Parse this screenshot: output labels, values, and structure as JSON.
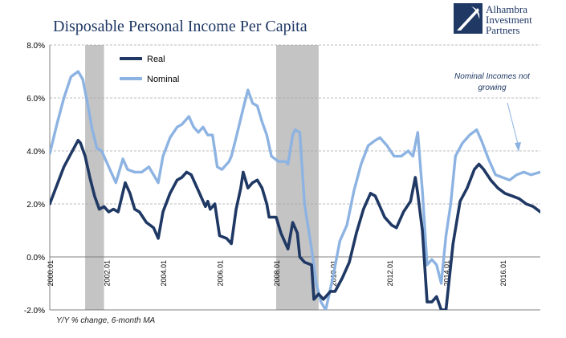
{
  "chart_data": {
    "type": "line",
    "title": "Disposable Personal Income Per Capita",
    "note": "Y/Y % change, 6-month MA",
    "annotation": "Nominal Incomes not growing",
    "ylim": [
      -2.0,
      8.0
    ],
    "y_ticks": [
      "8.0%",
      "6.0%",
      "4.0%",
      "2.0%",
      "0.0%",
      "-2.0%"
    ],
    "y_tick_values": [
      8,
      6,
      4,
      2,
      0,
      -2
    ],
    "xlim": [
      "2000-01",
      "2017-05"
    ],
    "x_ticks": [
      "2000.01",
      "2002.01",
      "2004.01",
      "2006.01",
      "2008.01",
      "2010.01",
      "2012.01",
      "2014.01",
      "2016.01"
    ],
    "grid": "horizontal dashed",
    "legend": "top-left",
    "recessions": [
      [
        "2001-04",
        "2001-12"
      ],
      [
        "2008-01",
        "2009-07"
      ]
    ],
    "series": [
      {
        "name": "Real",
        "color": "#1f3864",
        "points": [
          [
            "2000-01",
            2.0
          ],
          [
            "2000-04",
            2.7
          ],
          [
            "2000-07",
            3.4
          ],
          [
            "2000-10",
            3.9
          ],
          [
            "2001-01",
            4.4
          ],
          [
            "2001-02",
            4.3
          ],
          [
            "2001-04",
            3.8
          ],
          [
            "2001-06",
            3.0
          ],
          [
            "2001-08",
            2.3
          ],
          [
            "2001-10",
            1.8
          ],
          [
            "2001-12",
            1.9
          ],
          [
            "2002-02",
            1.7
          ],
          [
            "2002-04",
            1.8
          ],
          [
            "2002-06",
            1.7
          ],
          [
            "2002-09",
            2.8
          ],
          [
            "2002-11",
            2.4
          ],
          [
            "2003-01",
            1.8
          ],
          [
            "2003-03",
            1.7
          ],
          [
            "2003-06",
            1.3
          ],
          [
            "2003-09",
            1.1
          ],
          [
            "2003-11",
            0.7
          ],
          [
            "2004-01",
            1.7
          ],
          [
            "2004-04",
            2.4
          ],
          [
            "2004-07",
            2.9
          ],
          [
            "2004-09",
            3.0
          ],
          [
            "2004-11",
            3.2
          ],
          [
            "2005-01",
            3.1
          ],
          [
            "2005-04",
            2.5
          ],
          [
            "2005-07",
            1.9
          ],
          [
            "2005-08",
            2.1
          ],
          [
            "2005-09",
            1.8
          ],
          [
            "2005-11",
            2.0
          ],
          [
            "2006-01",
            0.8
          ],
          [
            "2006-04",
            0.7
          ],
          [
            "2006-06",
            0.5
          ],
          [
            "2006-08",
            1.8
          ],
          [
            "2006-10",
            2.6
          ],
          [
            "2006-11",
            3.2
          ],
          [
            "2007-01",
            2.6
          ],
          [
            "2007-03",
            2.8
          ],
          [
            "2007-05",
            2.9
          ],
          [
            "2007-07",
            2.6
          ],
          [
            "2007-09",
            2.0
          ],
          [
            "2007-10",
            1.5
          ],
          [
            "2008-01",
            1.5
          ],
          [
            "2008-03",
            0.9
          ],
          [
            "2008-06",
            0.3
          ],
          [
            "2008-08",
            1.3
          ],
          [
            "2008-10",
            0.9
          ],
          [
            "2008-11",
            0.0
          ],
          [
            "2009-01",
            -0.2
          ],
          [
            "2009-04",
            -0.3
          ],
          [
            "2009-05",
            -1.6
          ],
          [
            "2009-07",
            -1.4
          ],
          [
            "2009-09",
            -1.6
          ],
          [
            "2009-12",
            -1.3
          ],
          [
            "2010-02",
            -1.3
          ],
          [
            "2010-05",
            -0.8
          ],
          [
            "2010-08",
            -0.2
          ],
          [
            "2010-11",
            0.9
          ],
          [
            "2011-02",
            1.8
          ],
          [
            "2011-05",
            2.4
          ],
          [
            "2011-07",
            2.3
          ],
          [
            "2011-09",
            1.9
          ],
          [
            "2011-11",
            1.5
          ],
          [
            "2012-02",
            1.2
          ],
          [
            "2012-04",
            1.1
          ],
          [
            "2012-07",
            1.7
          ],
          [
            "2012-10",
            2.1
          ],
          [
            "2012-12",
            3.0
          ],
          [
            "2013-01",
            2.4
          ],
          [
            "2013-03",
            1.0
          ],
          [
            "2013-05",
            -1.7
          ],
          [
            "2013-07",
            -1.7
          ],
          [
            "2013-09",
            -1.5
          ],
          [
            "2013-11",
            -2.0
          ],
          [
            "2014-01",
            -2.0
          ],
          [
            "2014-04",
            0.5
          ],
          [
            "2014-07",
            2.1
          ],
          [
            "2014-10",
            2.6
          ],
          [
            "2015-01",
            3.3
          ],
          [
            "2015-03",
            3.5
          ],
          [
            "2015-05",
            3.3
          ],
          [
            "2015-08",
            2.9
          ],
          [
            "2015-11",
            2.6
          ],
          [
            "2016-02",
            2.4
          ],
          [
            "2016-05",
            2.3
          ],
          [
            "2016-08",
            2.2
          ],
          [
            "2016-11",
            2.0
          ],
          [
            "2017-02",
            1.9
          ],
          [
            "2017-05",
            1.7
          ]
        ]
      },
      {
        "name": "Nominal",
        "color": "#8db3e2",
        "points": [
          [
            "2000-01",
            3.9
          ],
          [
            "2000-04",
            5.0
          ],
          [
            "2000-07",
            6.0
          ],
          [
            "2000-10",
            6.8
          ],
          [
            "2001-01",
            7.0
          ],
          [
            "2001-03",
            6.7
          ],
          [
            "2001-05",
            5.8
          ],
          [
            "2001-07",
            4.8
          ],
          [
            "2001-09",
            4.1
          ],
          [
            "2001-11",
            4.0
          ],
          [
            "2002-01",
            3.6
          ],
          [
            "2002-03",
            3.2
          ],
          [
            "2002-05",
            2.8
          ],
          [
            "2002-08",
            3.7
          ],
          [
            "2002-10",
            3.3
          ],
          [
            "2003-01",
            3.2
          ],
          [
            "2003-04",
            3.2
          ],
          [
            "2003-07",
            3.4
          ],
          [
            "2003-09",
            3.1
          ],
          [
            "2003-11",
            2.8
          ],
          [
            "2004-01",
            3.8
          ],
          [
            "2004-04",
            4.5
          ],
          [
            "2004-07",
            4.9
          ],
          [
            "2004-09",
            5.0
          ],
          [
            "2004-12",
            5.3
          ],
          [
            "2005-02",
            4.9
          ],
          [
            "2005-04",
            4.7
          ],
          [
            "2005-06",
            4.9
          ],
          [
            "2005-08",
            4.6
          ],
          [
            "2005-10",
            4.6
          ],
          [
            "2005-12",
            3.4
          ],
          [
            "2006-02",
            3.3
          ],
          [
            "2006-05",
            3.6
          ],
          [
            "2006-06",
            3.8
          ],
          [
            "2006-08",
            4.5
          ],
          [
            "2006-11",
            5.6
          ],
          [
            "2007-01",
            6.3
          ],
          [
            "2007-03",
            5.8
          ],
          [
            "2007-05",
            5.7
          ],
          [
            "2007-07",
            5.1
          ],
          [
            "2007-09",
            4.6
          ],
          [
            "2007-11",
            3.8
          ],
          [
            "2008-02",
            3.6
          ],
          [
            "2008-05",
            3.6
          ],
          [
            "2008-06",
            3.5
          ],
          [
            "2008-08",
            4.6
          ],
          [
            "2008-09",
            4.8
          ],
          [
            "2008-11",
            4.7
          ],
          [
            "2009-01",
            2.0
          ],
          [
            "2009-04",
            0.3
          ],
          [
            "2009-06",
            -1.0
          ],
          [
            "2009-08",
            -1.7
          ],
          [
            "2009-10",
            -2.0
          ],
          [
            "2010-01",
            -0.8
          ],
          [
            "2010-04",
            0.6
          ],
          [
            "2010-07",
            1.2
          ],
          [
            "2010-10",
            2.5
          ],
          [
            "2011-01",
            3.5
          ],
          [
            "2011-04",
            4.2
          ],
          [
            "2011-07",
            4.4
          ],
          [
            "2011-09",
            4.5
          ],
          [
            "2011-12",
            4.2
          ],
          [
            "2012-03",
            3.8
          ],
          [
            "2012-06",
            3.8
          ],
          [
            "2012-09",
            4.0
          ],
          [
            "2012-11",
            3.8
          ],
          [
            "2013-01",
            4.7
          ],
          [
            "2013-03",
            2.5
          ],
          [
            "2013-05",
            -0.3
          ],
          [
            "2013-07",
            -0.1
          ],
          [
            "2013-09",
            -0.3
          ],
          [
            "2013-11",
            -1.0
          ],
          [
            "2014-01",
            0.8
          ],
          [
            "2014-03",
            2.0
          ],
          [
            "2014-05",
            3.8
          ],
          [
            "2014-08",
            4.3
          ],
          [
            "2014-11",
            4.6
          ],
          [
            "2015-02",
            4.8
          ],
          [
            "2015-04",
            4.4
          ],
          [
            "2015-07",
            3.7
          ],
          [
            "2015-10",
            3.1
          ],
          [
            "2016-01",
            3.0
          ],
          [
            "2016-04",
            2.9
          ],
          [
            "2016-07",
            3.1
          ],
          [
            "2016-10",
            3.2
          ],
          [
            "2017-01",
            3.1
          ],
          [
            "2017-05",
            3.2
          ]
        ]
      }
    ]
  },
  "logo": {
    "lines": [
      "Alhambra",
      "Investment",
      "Partners"
    ],
    "colors": {
      "navy": "#1f3864",
      "white": "#ffffff"
    }
  }
}
